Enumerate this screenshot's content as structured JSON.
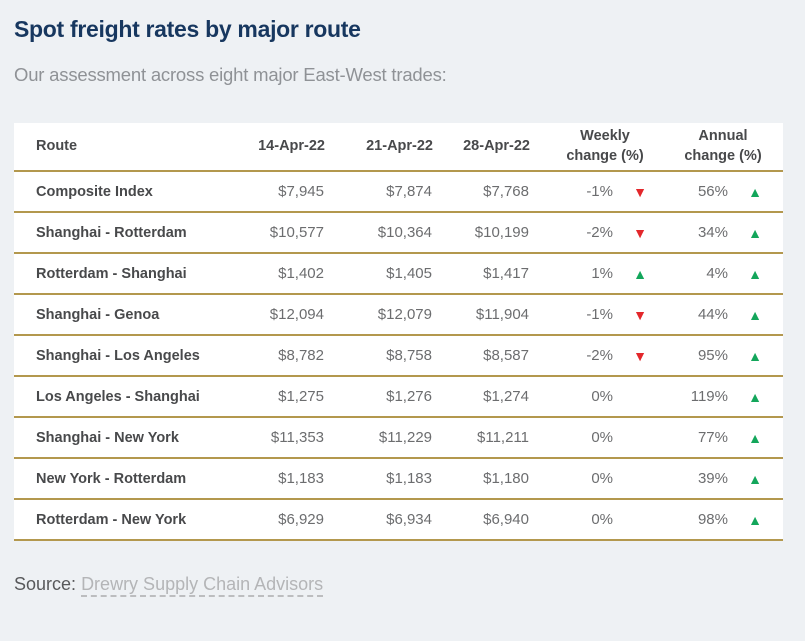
{
  "header": {
    "title": "Spot freight rates by major route",
    "subtitle": "Our assessment across eight major East-West trades:"
  },
  "chart_data": {
    "type": "table",
    "title": "Spot freight rates by major route",
    "subtitle": "Our assessment across eight major East-West trades:",
    "columns": [
      "Route",
      "14-Apr-22",
      "21-Apr-22",
      "28-Apr-22",
      "Weekly change (%)",
      "Annual change (%)"
    ],
    "rows": [
      {
        "route": "Composite Index",
        "rate_14apr": "$7,945",
        "rate_21apr": "$7,874",
        "rate_28apr": "$7,768",
        "weekly_change": "-1%",
        "weekly_dir": "down",
        "annual_change": "56%",
        "annual_dir": "up"
      },
      {
        "route": "Shanghai - Rotterdam",
        "rate_14apr": "$10,577",
        "rate_21apr": "$10,364",
        "rate_28apr": "$10,199",
        "weekly_change": "-2%",
        "weekly_dir": "down",
        "annual_change": "34%",
        "annual_dir": "up"
      },
      {
        "route": "Rotterdam - Shanghai",
        "rate_14apr": "$1,402",
        "rate_21apr": "$1,405",
        "rate_28apr": "$1,417",
        "weekly_change": "1%",
        "weekly_dir": "up",
        "annual_change": "4%",
        "annual_dir": "up"
      },
      {
        "route": "Shanghai - Genoa",
        "rate_14apr": "$12,094",
        "rate_21apr": "$12,079",
        "rate_28apr": "$11,904",
        "weekly_change": "-1%",
        "weekly_dir": "down",
        "annual_change": "44%",
        "annual_dir": "up"
      },
      {
        "route": "Shanghai - Los Angeles",
        "rate_14apr": "$8,782",
        "rate_21apr": "$8,758",
        "rate_28apr": "$8,587",
        "weekly_change": "-2%",
        "weekly_dir": "down",
        "annual_change": "95%",
        "annual_dir": "up"
      },
      {
        "route": "Los Angeles - Shanghai",
        "rate_14apr": "$1,275",
        "rate_21apr": "$1,276",
        "rate_28apr": "$1,274",
        "weekly_change": "0%",
        "weekly_dir": "none",
        "annual_change": "119%",
        "annual_dir": "up"
      },
      {
        "route": "Shanghai - New York",
        "rate_14apr": "$11,353",
        "rate_21apr": "$11,229",
        "rate_28apr": "$11,211",
        "weekly_change": "0%",
        "weekly_dir": "none",
        "annual_change": "77%",
        "annual_dir": "up"
      },
      {
        "route": "New York - Rotterdam",
        "rate_14apr": "$1,183",
        "rate_21apr": "$1,183",
        "rate_28apr": "$1,180",
        "weekly_change": "0%",
        "weekly_dir": "none",
        "annual_change": "39%",
        "annual_dir": "up"
      },
      {
        "route": "Rotterdam - New York",
        "rate_14apr": "$6,929",
        "rate_21apr": "$6,934",
        "rate_28apr": "$6,940",
        "weekly_change": "0%",
        "weekly_dir": "none",
        "annual_change": "98%",
        "annual_dir": "up"
      }
    ]
  },
  "icons": {
    "up_triangle": "▲",
    "down_triangle": "▼"
  },
  "colors": {
    "accent_gold": "#b3984e",
    "positive_green": "#13a65b",
    "negative_red": "#e3272b",
    "title_navy": "#17375f"
  },
  "source": {
    "label": "Source:",
    "link_text": "Drewry Supply Chain Advisors"
  }
}
